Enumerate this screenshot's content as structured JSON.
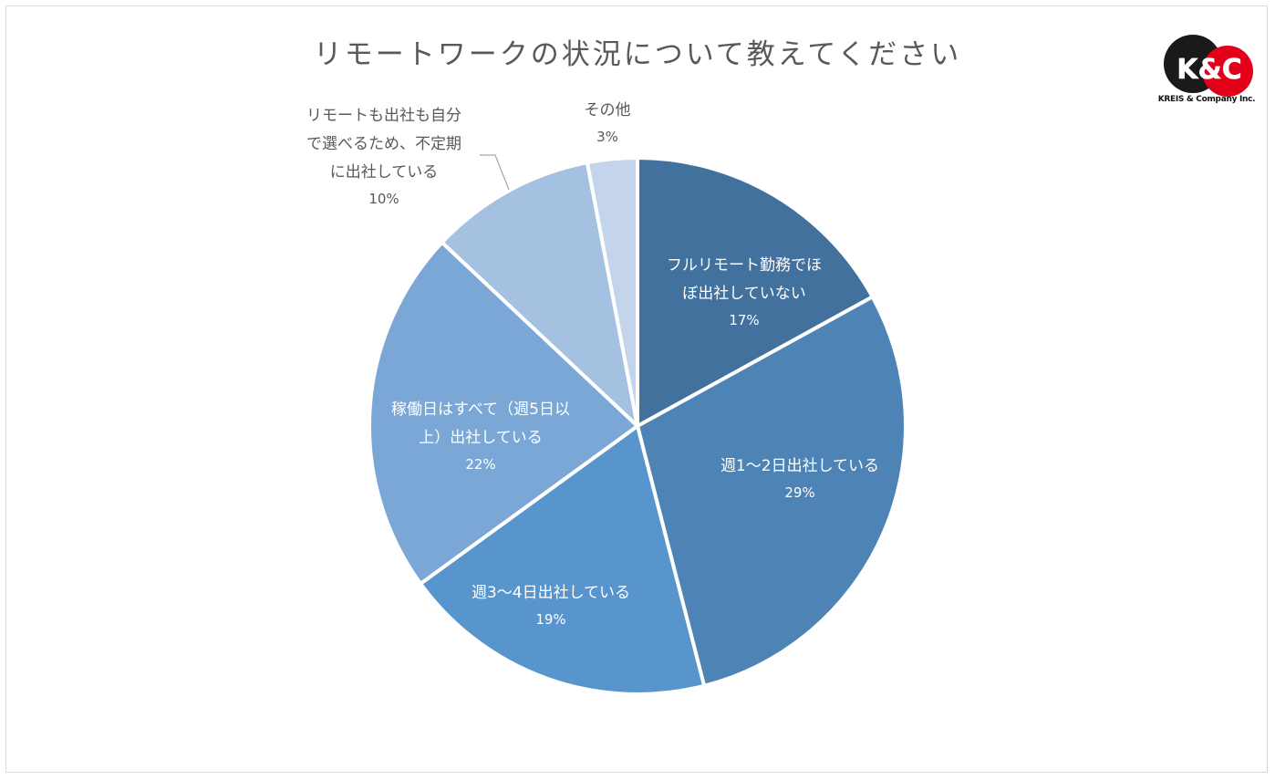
{
  "chart_data": {
    "type": "pie",
    "title": "リモートワークの状況について教えてください",
    "slices": [
      {
        "label_lines": [
          "フルリモート勤務でほ",
          "ぼ出社していない"
        ],
        "value": 17,
        "pct": "17%",
        "color": "#42719e"
      },
      {
        "label_lines": [
          "週1〜2日出社している"
        ],
        "value": 29,
        "pct": "29%",
        "color": "#4e83b6"
      },
      {
        "label_lines": [
          "週3〜4日出社している"
        ],
        "value": 19,
        "pct": "19%",
        "color": "#5795cc"
      },
      {
        "label_lines": [
          "稼働日はすべて（週5日以",
          "上）出社している"
        ],
        "value": 22,
        "pct": "22%",
        "color": "#7ba7d7"
      },
      {
        "label_lines": [
          "リモートも出社も自分",
          "で選べるため、不定期",
          "に出社している"
        ],
        "value": 10,
        "pct": "10%",
        "color": "#a5c1e2"
      },
      {
        "label_lines": [
          "その他"
        ],
        "value": 3,
        "pct": "3%",
        "color": "#c4d5eb"
      }
    ]
  },
  "logo": {
    "mark": "K&C",
    "company": "KREIS & Company Inc.",
    "colors": {
      "dark": "#1a1a1a",
      "red": "#e3001b"
    }
  }
}
